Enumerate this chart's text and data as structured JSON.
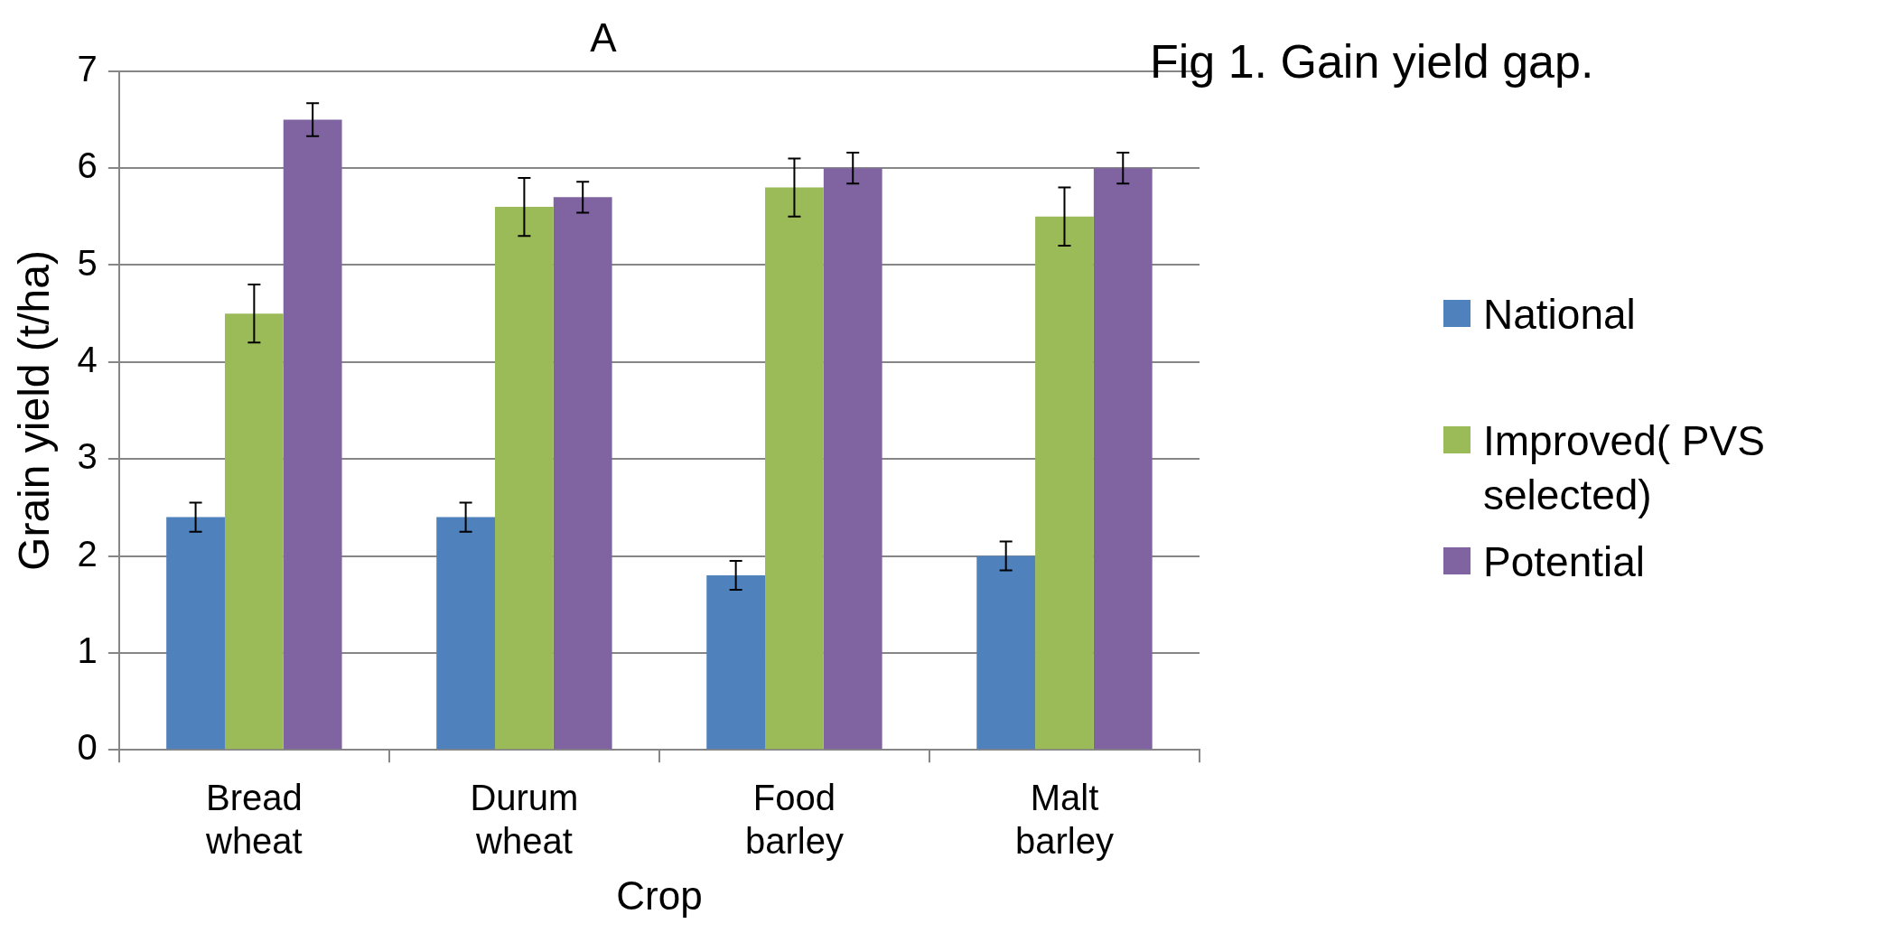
{
  "chart_data": {
    "type": "bar",
    "title": "A",
    "xlabel": "Crop",
    "ylabel": "Grain yield (t/ha)",
    "annotations": [
      "Fig 1. Gain yield gap."
    ],
    "categories": [
      "Bread wheat",
      "Durum wheat",
      "Food barley",
      "Malt barley"
    ],
    "series": [
      {
        "name": "National",
        "color": "#4f81bd",
        "values": [
          2.4,
          2.4,
          1.8,
          2.0
        ],
        "errors": [
          0.15,
          0.15,
          0.15,
          0.15
        ]
      },
      {
        "name": "Improved( PVS selected)",
        "color": "#9bbb59",
        "values": [
          4.5,
          5.6,
          5.8,
          5.5
        ],
        "errors": [
          0.3,
          0.3,
          0.3,
          0.3
        ]
      },
      {
        "name": "Potential",
        "color": "#8064a2",
        "values": [
          6.5,
          5.7,
          6.0,
          6.0
        ],
        "errors": [
          0.17,
          0.16,
          0.16,
          0.16
        ]
      }
    ],
    "ylim": [
      0,
      7
    ],
    "yticks": [
      0,
      1,
      2,
      3,
      4,
      5,
      6,
      7
    ],
    "grid": "y",
    "legend": "right"
  }
}
